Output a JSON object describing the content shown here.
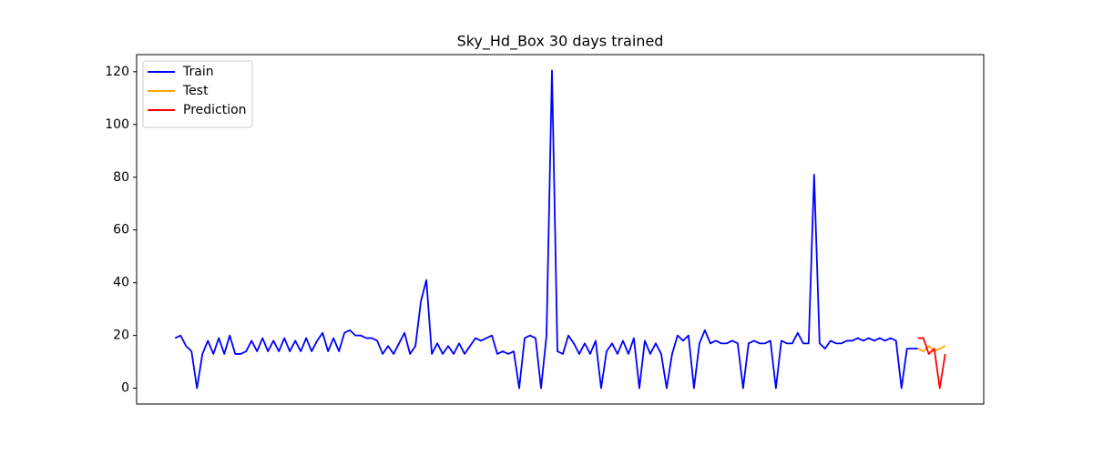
{
  "chart_data": {
    "type": "line",
    "title": "Sky_Hd_Box 30 days trained",
    "ylim": [
      -6,
      126.5
    ],
    "yticks": [
      0,
      20,
      40,
      60,
      80,
      100,
      120
    ],
    "legend": "upper left",
    "series": [
      {
        "name": "Train",
        "color": "#0000ff",
        "values": [
          19,
          20,
          16,
          14,
          0,
          13,
          18,
          13,
          19,
          13,
          20,
          13,
          13,
          14,
          18,
          14,
          19,
          14,
          18,
          14,
          19,
          14,
          18,
          14,
          19,
          14,
          18,
          21,
          14,
          19,
          14,
          21,
          22,
          20,
          20,
          19,
          19,
          18,
          13,
          16,
          13,
          17,
          21,
          13,
          16,
          33,
          41,
          13,
          17,
          13,
          16,
          13,
          17,
          13,
          16,
          19,
          18,
          19,
          20,
          13,
          14,
          13,
          14,
          0,
          19,
          20,
          19,
          0,
          20,
          120.5,
          14,
          13,
          20,
          17,
          13,
          17,
          13,
          18,
          0,
          14,
          17,
          13,
          18,
          13,
          19,
          0,
          18,
          13,
          17,
          13,
          0,
          13,
          20,
          18,
          20,
          0,
          17,
          22,
          17,
          18,
          17,
          17,
          18,
          17,
          0,
          17,
          18,
          17,
          17,
          18,
          0,
          18,
          17,
          17,
          21,
          17,
          17,
          81,
          17,
          15,
          18,
          17,
          17,
          18,
          18,
          19,
          18,
          19,
          18,
          19,
          18,
          19,
          18,
          0,
          15,
          15,
          15,
          null,
          null,
          null,
          null,
          null
        ]
      },
      {
        "name": "Test",
        "color": "#ffa500",
        "values": [
          null,
          null,
          null,
          null,
          null,
          null,
          null,
          null,
          null,
          null,
          null,
          null,
          null,
          null,
          null,
          null,
          null,
          null,
          null,
          null,
          null,
          null,
          null,
          null,
          null,
          null,
          null,
          null,
          null,
          null,
          null,
          null,
          null,
          null,
          null,
          null,
          null,
          null,
          null,
          null,
          null,
          null,
          null,
          null,
          null,
          null,
          null,
          null,
          null,
          null,
          null,
          null,
          null,
          null,
          null,
          null,
          null,
          null,
          null,
          null,
          null,
          null,
          null,
          null,
          null,
          null,
          null,
          null,
          null,
          null,
          null,
          null,
          null,
          null,
          null,
          null,
          null,
          null,
          null,
          null,
          null,
          null,
          null,
          null,
          null,
          null,
          null,
          null,
          null,
          null,
          null,
          null,
          null,
          null,
          null,
          null,
          null,
          null,
          null,
          null,
          null,
          null,
          null,
          null,
          null,
          null,
          null,
          null,
          null,
          null,
          null,
          null,
          null,
          null,
          null,
          null,
          null,
          null,
          null,
          null,
          null,
          null,
          null,
          null,
          null,
          null,
          null,
          null,
          null,
          null,
          null,
          null,
          null,
          null,
          null,
          null,
          15,
          14,
          16,
          14,
          15,
          16
        ]
      },
      {
        "name": "Prediction",
        "color": "#ff0000",
        "values": [
          null,
          null,
          null,
          null,
          null,
          null,
          null,
          null,
          null,
          null,
          null,
          null,
          null,
          null,
          null,
          null,
          null,
          null,
          null,
          null,
          null,
          null,
          null,
          null,
          null,
          null,
          null,
          null,
          null,
          null,
          null,
          null,
          null,
          null,
          null,
          null,
          null,
          null,
          null,
          null,
          null,
          null,
          null,
          null,
          null,
          null,
          null,
          null,
          null,
          null,
          null,
          null,
          null,
          null,
          null,
          null,
          null,
          null,
          null,
          null,
          null,
          null,
          null,
          null,
          null,
          null,
          null,
          null,
          null,
          null,
          null,
          null,
          null,
          null,
          null,
          null,
          null,
          null,
          null,
          null,
          null,
          null,
          null,
          null,
          null,
          null,
          null,
          null,
          null,
          null,
          null,
          null,
          null,
          null,
          null,
          null,
          null,
          null,
          null,
          null,
          null,
          null,
          null,
          null,
          null,
          null,
          null,
          null,
          null,
          null,
          null,
          null,
          null,
          null,
          null,
          null,
          null,
          null,
          null,
          null,
          null,
          null,
          null,
          null,
          null,
          null,
          null,
          null,
          null,
          null,
          null,
          null,
          null,
          null,
          null,
          null,
          19,
          19,
          13,
          15,
          0,
          13
        ]
      }
    ]
  }
}
